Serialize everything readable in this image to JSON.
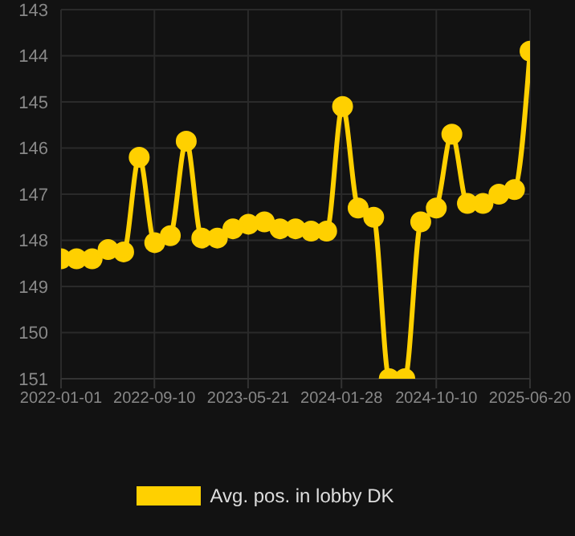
{
  "chart_data": {
    "type": "line",
    "x": [
      "2022-01-01",
      "2022-02-12",
      "2022-03-26",
      "2022-05-08",
      "2022-06-19",
      "2022-07-31",
      "2022-09-11",
      "2022-10-23",
      "2022-12-05",
      "2023-01-16",
      "2023-02-27",
      "2023-04-10",
      "2023-05-22",
      "2023-07-04",
      "2023-08-15",
      "2023-09-26",
      "2023-11-07",
      "2023-12-19",
      "2024-01-31",
      "2024-03-13",
      "2024-04-24",
      "2024-06-05",
      "2024-07-17",
      "2024-08-29",
      "2024-10-10",
      "2024-11-21",
      "2025-01-02",
      "2025-02-13",
      "2025-03-28",
      "2025-05-09",
      "2025-06-20"
    ],
    "series": [
      {
        "name": "Avg. pos. in lobby DK",
        "color": "#ffd000",
        "values": [
          148.4,
          148.4,
          148.4,
          148.2,
          148.25,
          146.2,
          148.05,
          147.9,
          145.85,
          147.95,
          147.95,
          147.75,
          147.65,
          147.6,
          147.75,
          147.75,
          147.8,
          147.8,
          145.1,
          147.3,
          147.5,
          151,
          151,
          147.6,
          147.3,
          145.7,
          147.2,
          147.2,
          147.0,
          146.9,
          143.9
        ]
      }
    ],
    "xlim": [
      "2022-01-01",
      "2025-06-20"
    ],
    "xticks": [
      "2022-01-01",
      "2022-09-10",
      "2023-05-21",
      "2024-01-28",
      "2024-10-10",
      "2025-06-20"
    ],
    "ylim": [
      151,
      143
    ],
    "yticks": [
      143,
      144,
      145,
      146,
      147,
      148,
      149,
      150,
      151
    ],
    "grid": true,
    "legend": "bottom",
    "marker": "circle",
    "line_style": "solid"
  }
}
